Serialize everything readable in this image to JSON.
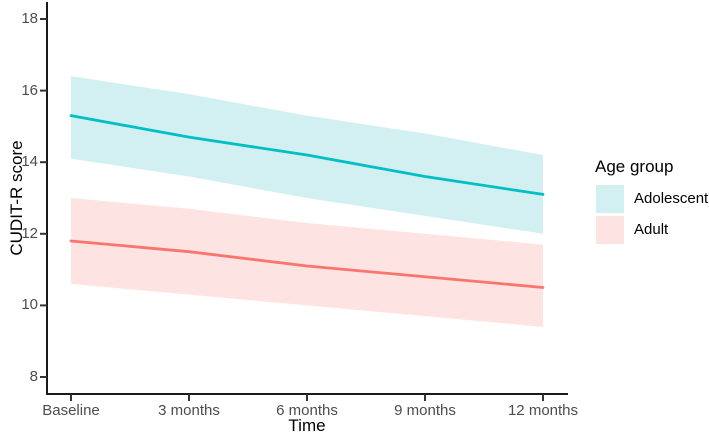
{
  "chart_data": {
    "type": "line",
    "title": "",
    "xlabel": "Time",
    "ylabel": "CUDIT-R score",
    "categories": [
      "Baseline",
      "3 months",
      "6 months",
      "9 months",
      "12 months"
    ],
    "yticks": [
      8,
      10,
      12,
      14,
      16,
      18
    ],
    "ylim": [
      7.5,
      18.5
    ],
    "grid": false,
    "ribbon_style": "shaded confidence band, no border",
    "legend": {
      "title": "Age group",
      "position": "right",
      "entries": [
        {
          "label": "Adolescent",
          "fill": "#D2F0F1"
        },
        {
          "label": "Adult",
          "fill": "#FDE4E2"
        }
      ]
    },
    "series": [
      {
        "name": "Adolescent",
        "color": "#00BFC4",
        "fill": "#D2F0F1",
        "values": [
          15.3,
          14.7,
          14.2,
          13.6,
          13.1
        ],
        "upper": [
          16.4,
          15.9,
          15.3,
          14.8,
          14.2
        ],
        "lower": [
          14.1,
          13.6,
          13.0,
          12.5,
          12.0
        ]
      },
      {
        "name": "Adult",
        "color": "#F8766D",
        "fill": "#FDE4E2",
        "values": [
          11.8,
          11.5,
          11.1,
          10.8,
          10.5
        ],
        "upper": [
          13.0,
          12.7,
          12.3,
          12.0,
          11.7
        ],
        "lower": [
          10.6,
          10.3,
          10.0,
          9.7,
          9.4
        ]
      }
    ]
  },
  "colors": {
    "axis_line": "#1a1a1a",
    "tick_mark": "#333333",
    "tick_label": "#4d4d4d",
    "axis_title": "#000000",
    "background": "#ffffff"
  }
}
